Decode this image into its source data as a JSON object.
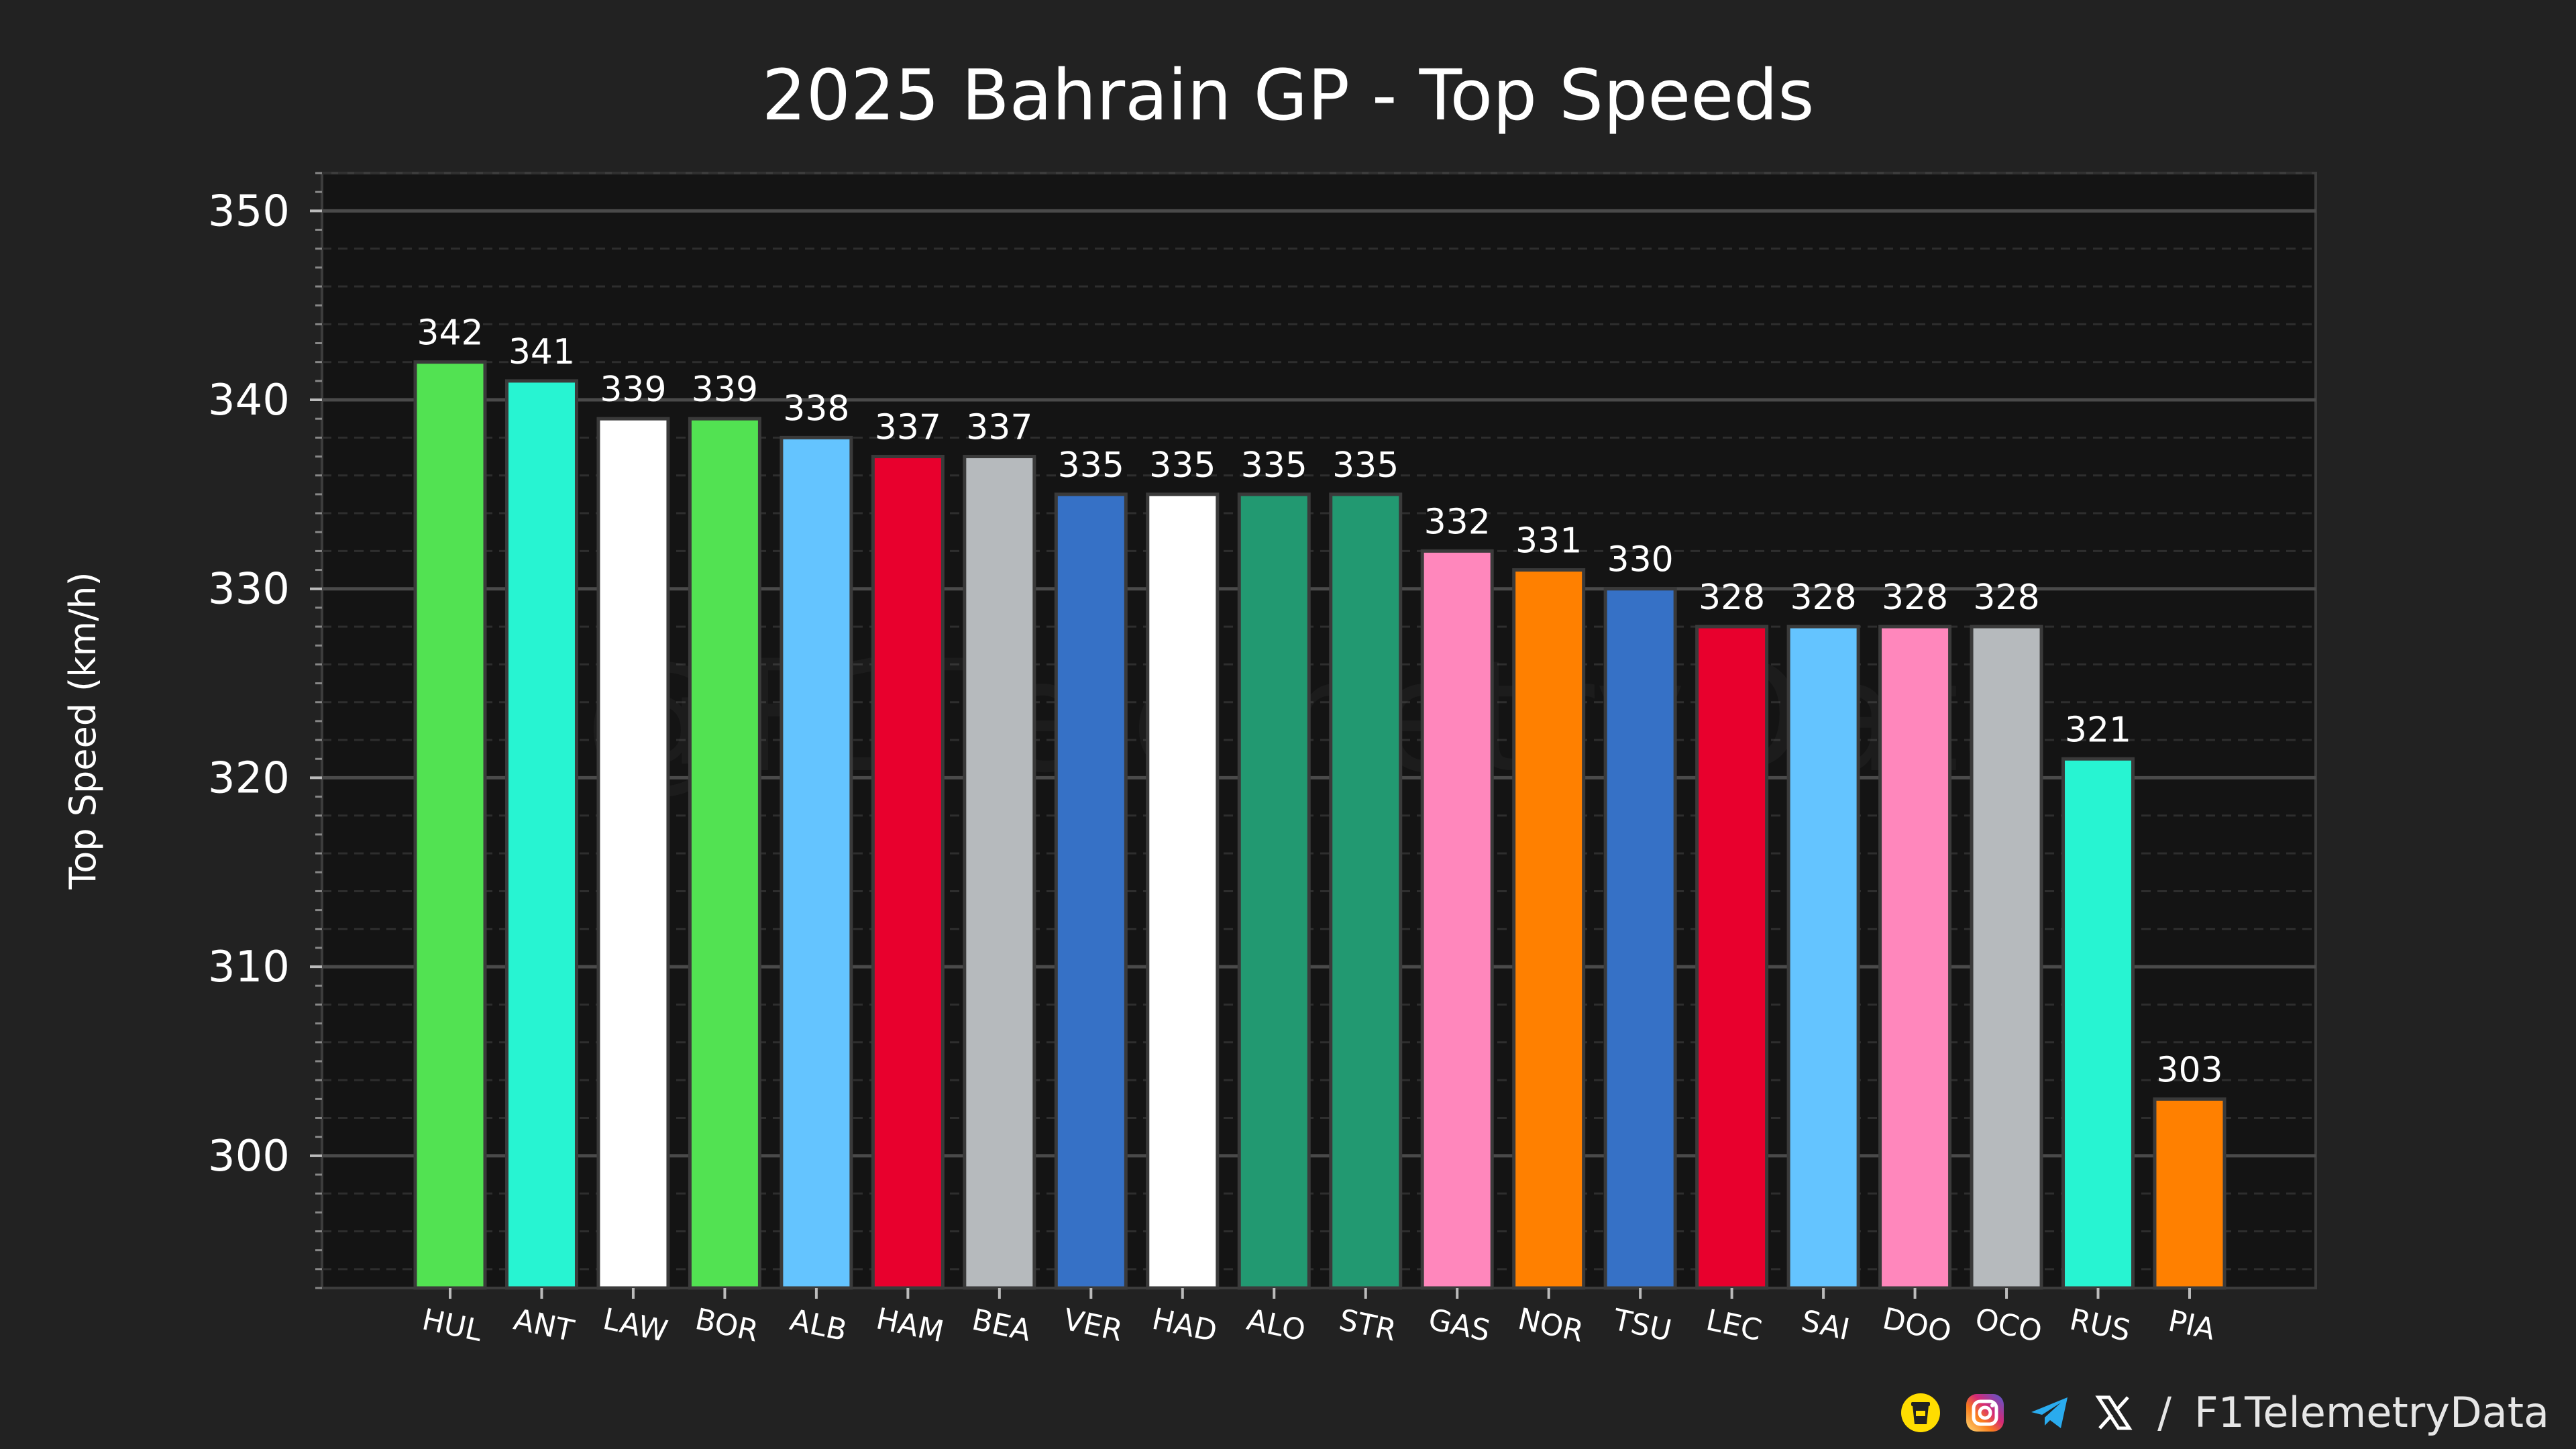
{
  "chart_data": {
    "type": "bar",
    "title": "2025 Bahrain GP - Top Speeds",
    "xlabel": "",
    "ylabel": "Top Speed (km/h)",
    "ylim": [
      293,
      352
    ],
    "yticks": [
      300,
      310,
      320,
      330,
      340,
      350
    ],
    "grid": true,
    "categories": [
      "HUL",
      "ANT",
      "LAW",
      "BOR",
      "ALB",
      "HAM",
      "BEA",
      "VER",
      "HAD",
      "ALO",
      "STR",
      "GAS",
      "NOR",
      "TSU",
      "LEC",
      "SAI",
      "DOO",
      "OCO",
      "RUS",
      "PIA"
    ],
    "values": [
      342,
      341,
      339,
      339,
      338,
      337,
      337,
      335,
      335,
      335,
      335,
      332,
      331,
      330,
      328,
      328,
      328,
      328,
      321,
      303
    ],
    "colors": [
      "#52e252",
      "#27f4d2",
      "#ffffff",
      "#52e252",
      "#64c4ff",
      "#e8002d",
      "#b6babd",
      "#3671c6",
      "#ffffff",
      "#229971",
      "#229971",
      "#ff87bc",
      "#ff8000",
      "#3671c6",
      "#e8002d",
      "#64c4ff",
      "#ff87bc",
      "#b6babd",
      "#27f4d2",
      "#ff8000"
    ]
  },
  "watermark": "@F1TelemetryData",
  "footer": {
    "separator": "/",
    "handle": "F1TelemetryData",
    "icons": [
      "coffee-cup-icon",
      "instagram-icon",
      "telegram-icon",
      "x-icon"
    ]
  }
}
